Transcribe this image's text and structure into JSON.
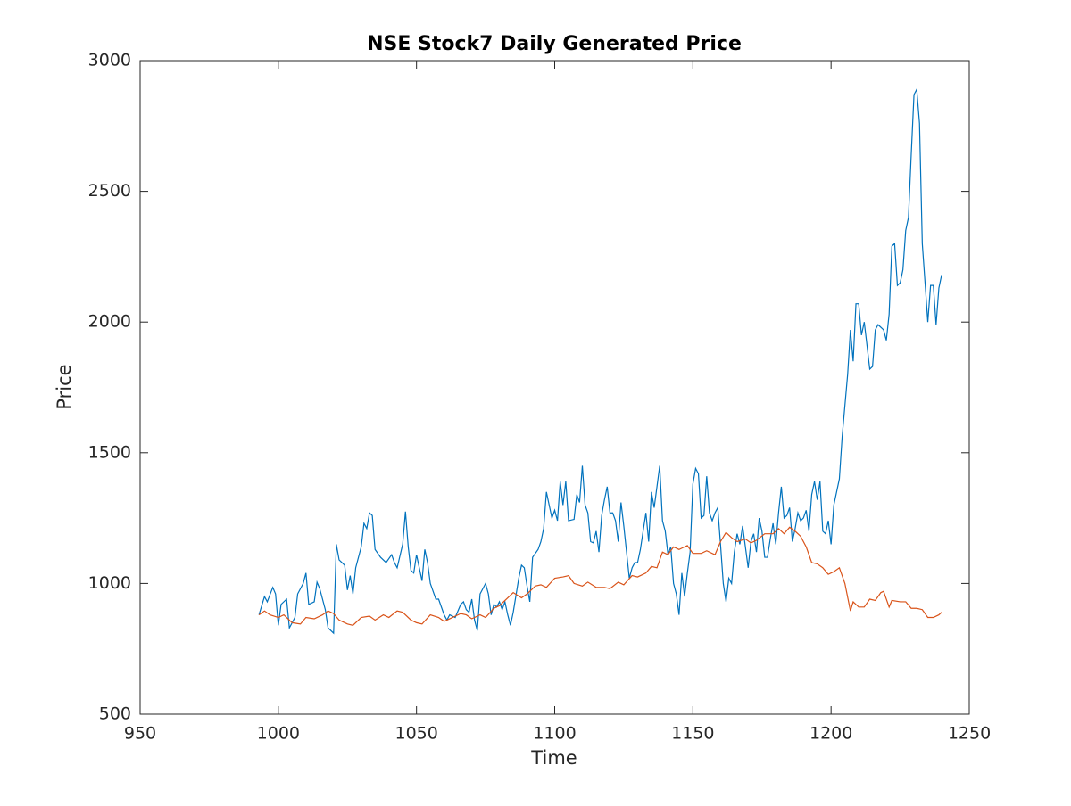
{
  "chart_data": {
    "type": "line",
    "title": "NSE Stock7 Daily Generated Price",
    "x_label": "Time",
    "y_label": "Price",
    "xlim": [
      950,
      1250
    ],
    "ylim": [
      500,
      3000
    ],
    "xticks": [
      950,
      1000,
      1050,
      1100,
      1150,
      1200,
      1250
    ],
    "yticks": [
      500,
      1000,
      1500,
      2000,
      2500,
      3000
    ],
    "grid": false,
    "series": [
      {
        "color": "#0072BD",
        "x": [
          993,
          995,
          996,
          998,
          999,
          1000,
          1001,
          1003,
          1004,
          1006,
          1007,
          1009,
          1010,
          1011,
          1013,
          1014,
          1015,
          1017,
          1018,
          1020,
          1021,
          1022,
          1024,
          1025,
          1026,
          1027,
          1028,
          1030,
          1031,
          1032,
          1033,
          1034,
          1035,
          1037,
          1039,
          1041,
          1042,
          1043,
          1045,
          1046,
          1047,
          1048,
          1049,
          1050,
          1051,
          1052,
          1053,
          1054,
          1055,
          1057,
          1058,
          1060,
          1061,
          1062,
          1064,
          1066,
          1067,
          1068,
          1069,
          1070,
          1071,
          1072,
          1073,
          1075,
          1076,
          1077,
          1078,
          1079,
          1080,
          1081,
          1082,
          1083,
          1084,
          1085,
          1087,
          1088,
          1089,
          1090,
          1091,
          1092,
          1094,
          1095,
          1096,
          1097,
          1098,
          1099,
          1100,
          1101,
          1102,
          1103,
          1104,
          1105,
          1107,
          1108,
          1109,
          1110,
          1111,
          1112,
          1113,
          1114,
          1115,
          1116,
          1117,
          1118,
          1119,
          1120,
          1121,
          1122,
          1123,
          1124,
          1125,
          1127,
          1128,
          1129,
          1130,
          1131,
          1132,
          1133,
          1134,
          1135,
          1136,
          1137,
          1138,
          1139,
          1140,
          1141,
          1142,
          1143,
          1144,
          1145,
          1146,
          1147,
          1148,
          1149,
          1150,
          1151,
          1152,
          1153,
          1154,
          1155,
          1156,
          1157,
          1158,
          1159,
          1160,
          1161,
          1162,
          1163,
          1164,
          1165,
          1166,
          1167,
          1168,
          1169,
          1170,
          1171,
          1172,
          1173,
          1174,
          1175,
          1176,
          1177,
          1178,
          1179,
          1180,
          1181,
          1182,
          1183,
          1184,
          1185,
          1186,
          1187,
          1188,
          1189,
          1190,
          1191,
          1192,
          1193,
          1194,
          1195,
          1196,
          1197,
          1198,
          1199,
          1200,
          1201,
          1203,
          1204,
          1206,
          1207,
          1208,
          1209,
          1210,
          1211,
          1212,
          1214,
          1215,
          1216,
          1217,
          1219,
          1220,
          1221,
          1222,
          1223,
          1224,
          1225,
          1226,
          1227,
          1228,
          1229,
          1230,
          1231,
          1232,
          1233,
          1235,
          1236,
          1237,
          1238,
          1239,
          1240
        ],
        "values": [
          880,
          950,
          930,
          985,
          960,
          840,
          920,
          940,
          830,
          870,
          960,
          1000,
          1040,
          920,
          930,
          1005,
          980,
          900,
          830,
          810,
          1150,
          1090,
          1070,
          975,
          1030,
          960,
          1060,
          1140,
          1230,
          1210,
          1270,
          1260,
          1130,
          1100,
          1080,
          1110,
          1080,
          1060,
          1150,
          1275,
          1140,
          1050,
          1040,
          1110,
          1060,
          1010,
          1130,
          1080,
          1000,
          940,
          940,
          880,
          860,
          880,
          870,
          920,
          930,
          900,
          890,
          940,
          860,
          820,
          960,
          1000,
          960,
          880,
          920,
          910,
          930,
          900,
          930,
          880,
          840,
          890,
          1020,
          1070,
          1060,
          990,
          930,
          1100,
          1130,
          1160,
          1210,
          1350,
          1300,
          1250,
          1280,
          1240,
          1390,
          1300,
          1390,
          1240,
          1245,
          1340,
          1310,
          1450,
          1300,
          1270,
          1160,
          1155,
          1200,
          1120,
          1260,
          1320,
          1370,
          1270,
          1270,
          1240,
          1160,
          1310,
          1220,
          1020,
          1060,
          1080,
          1080,
          1130,
          1200,
          1270,
          1160,
          1350,
          1290,
          1370,
          1450,
          1240,
          1200,
          1110,
          1140,
          1000,
          960,
          880,
          1040,
          950,
          1040,
          1120,
          1380,
          1440,
          1420,
          1250,
          1260,
          1410,
          1270,
          1240,
          1270,
          1290,
          1150,
          1000,
          930,
          1020,
          1000,
          1120,
          1190,
          1150,
          1220,
          1140,
          1060,
          1160,
          1190,
          1120,
          1250,
          1200,
          1100,
          1100,
          1170,
          1230,
          1150,
          1270,
          1370,
          1250,
          1260,
          1290,
          1160,
          1210,
          1270,
          1240,
          1250,
          1280,
          1200,
          1340,
          1390,
          1320,
          1390,
          1200,
          1190,
          1240,
          1150,
          1300,
          1400,
          1560,
          1800,
          1970,
          1850,
          2070,
          2070,
          1950,
          2000,
          1820,
          1830,
          1970,
          1990,
          1970,
          1930,
          2030,
          2290,
          2300,
          2140,
          2150,
          2200,
          2350,
          2400,
          2640,
          2870,
          2890,
          2760,
          2300,
          2000,
          2140,
          2140,
          1990,
          2130,
          2180
        ]
      },
      {
        "color": "#D95319",
        "x": [
          993,
          995,
          997,
          1000,
          1002,
          1005,
          1008,
          1010,
          1013,
          1016,
          1018,
          1020,
          1022,
          1025,
          1027,
          1030,
          1033,
          1035,
          1038,
          1040,
          1043,
          1045,
          1048,
          1050,
          1052,
          1055,
          1058,
          1060,
          1063,
          1066,
          1068,
          1070,
          1073,
          1075,
          1078,
          1080,
          1083,
          1085,
          1088,
          1090,
          1093,
          1095,
          1097,
          1100,
          1103,
          1105,
          1107,
          1110,
          1112,
          1115,
          1118,
          1120,
          1123,
          1125,
          1128,
          1130,
          1133,
          1135,
          1137,
          1139,
          1141,
          1143,
          1145,
          1148,
          1150,
          1153,
          1155,
          1158,
          1160,
          1162,
          1164,
          1166,
          1169,
          1171,
          1173,
          1176,
          1179,
          1181,
          1183,
          1185,
          1187,
          1189,
          1191,
          1193,
          1195,
          1197,
          1199,
          1201,
          1203,
          1205,
          1207,
          1208,
          1210,
          1212,
          1214,
          1216,
          1218,
          1219,
          1221,
          1222,
          1225,
          1227,
          1229,
          1231,
          1233,
          1235,
          1237,
          1239,
          1240
        ],
        "values": [
          880,
          895,
          880,
          870,
          880,
          850,
          845,
          870,
          865,
          880,
          895,
          885,
          860,
          845,
          840,
          870,
          875,
          860,
          880,
          870,
          895,
          890,
          860,
          850,
          845,
          880,
          870,
          855,
          870,
          885,
          880,
          865,
          880,
          870,
          905,
          915,
          945,
          965,
          945,
          960,
          990,
          995,
          985,
          1020,
          1025,
          1030,
          1000,
          990,
          1005,
          985,
          985,
          980,
          1005,
          995,
          1030,
          1025,
          1040,
          1065,
          1060,
          1120,
          1110,
          1140,
          1130,
          1145,
          1115,
          1115,
          1125,
          1110,
          1160,
          1195,
          1175,
          1160,
          1170,
          1155,
          1165,
          1190,
          1190,
          1210,
          1190,
          1215,
          1200,
          1180,
          1140,
          1080,
          1075,
          1060,
          1035,
          1045,
          1060,
          1000,
          895,
          930,
          910,
          910,
          940,
          935,
          965,
          970,
          910,
          935,
          930,
          930,
          905,
          905,
          900,
          870,
          870,
          880,
          890
        ]
      }
    ]
  }
}
